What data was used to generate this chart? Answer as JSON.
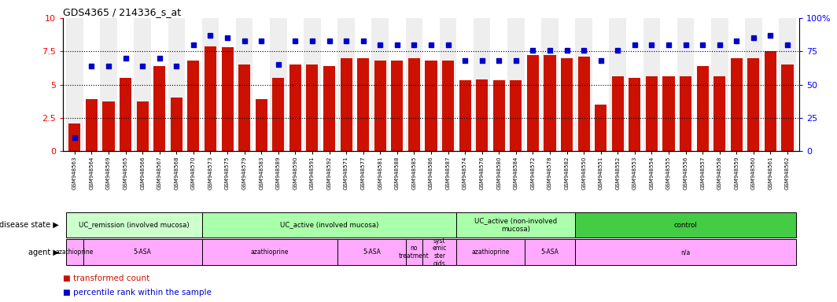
{
  "title": "GDS4365 / 214336_s_at",
  "samples": [
    "GSM948563",
    "GSM948564",
    "GSM948569",
    "GSM948565",
    "GSM948566",
    "GSM948567",
    "GSM948568",
    "GSM948570",
    "GSM948573",
    "GSM948575",
    "GSM948579",
    "GSM948583",
    "GSM948589",
    "GSM948590",
    "GSM948591",
    "GSM948592",
    "GSM948571",
    "GSM948577",
    "GSM948581",
    "GSM948588",
    "GSM948585",
    "GSM948586",
    "GSM948587",
    "GSM948574",
    "GSM948576",
    "GSM948580",
    "GSM948584",
    "GSM948572",
    "GSM948578",
    "GSM948582",
    "GSM948550",
    "GSM948551",
    "GSM948552",
    "GSM948553",
    "GSM948554",
    "GSM948555",
    "GSM948556",
    "GSM948557",
    "GSM948558",
    "GSM948559",
    "GSM948560",
    "GSM948561",
    "GSM948562"
  ],
  "bar_values": [
    2.1,
    3.9,
    3.7,
    5.5,
    3.7,
    6.4,
    4.0,
    6.8,
    7.9,
    7.8,
    6.5,
    3.9,
    5.5,
    6.5,
    6.5,
    6.4,
    7.0,
    7.0,
    6.8,
    6.8,
    7.0,
    6.8,
    6.8,
    5.3,
    5.4,
    5.3,
    5.3,
    7.2,
    7.2,
    7.0,
    7.1,
    3.5,
    5.6,
    5.5,
    5.6,
    5.6,
    5.6,
    6.4,
    5.6,
    7.0,
    7.0,
    7.5,
    6.5
  ],
  "percentile_values": [
    10,
    64,
    64,
    70,
    64,
    70,
    64,
    80,
    87,
    85,
    83,
    83,
    65,
    83,
    83,
    83,
    83,
    83,
    80,
    80,
    80,
    80,
    80,
    68,
    68,
    68,
    68,
    76,
    76,
    76,
    76,
    68,
    76,
    80,
    80,
    80,
    80,
    80,
    80,
    83,
    85,
    87,
    80
  ],
  "disease_state_groups": [
    {
      "label": "UC_remission (involved mucosa)",
      "start": 0,
      "end": 8,
      "color": "#ccffcc"
    },
    {
      "label": "UC_active (involved mucosa)",
      "start": 8,
      "end": 23,
      "color": "#aaffaa"
    },
    {
      "label": "UC_active (non-involved\nmucosa)",
      "start": 23,
      "end": 30,
      "color": "#aaffaa"
    },
    {
      "label": "control",
      "start": 30,
      "end": 43,
      "color": "#44cc44"
    }
  ],
  "agent_groups": [
    {
      "label": "azathioprine",
      "start": 0,
      "end": 1
    },
    {
      "label": "5-ASA",
      "start": 1,
      "end": 8
    },
    {
      "label": "azathioprine",
      "start": 8,
      "end": 16
    },
    {
      "label": "5-ASA",
      "start": 16,
      "end": 20
    },
    {
      "label": "no\ntreatment",
      "start": 20,
      "end": 21
    },
    {
      "label": "syst\nemic\nster\noids",
      "start": 21,
      "end": 23
    },
    {
      "label": "azathioprine",
      "start": 23,
      "end": 27
    },
    {
      "label": "5-ASA",
      "start": 27,
      "end": 30
    },
    {
      "label": "n/a",
      "start": 30,
      "end": 43
    }
  ],
  "bar_color": "#cc1100",
  "percentile_color": "#0000cc",
  "ylim_left": [
    0,
    10
  ],
  "ylim_right": [
    0,
    100
  ],
  "yticks_left": [
    0,
    2.5,
    5.0,
    7.5,
    10
  ],
  "ytick_labels_left": [
    "0",
    "2.5",
    "5",
    "7.5",
    "10"
  ],
  "yticks_right": [
    0,
    25,
    50,
    75,
    100
  ],
  "ytick_labels_right": [
    "0",
    "25",
    "50",
    "75",
    "100%"
  ],
  "dotted_lines": [
    2.5,
    5.0,
    7.5
  ],
  "disease_color_light": "#ccffcc",
  "disease_color_mid": "#aaffaa",
  "disease_color_dark": "#44cc44",
  "agent_color": "#ffaaff",
  "bg_alt": "#eeeeee",
  "bg_main": "#ffffff"
}
